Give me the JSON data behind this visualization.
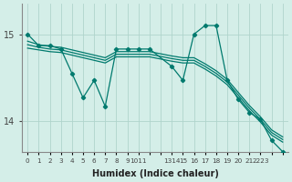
{
  "xlabel": "Humidex (Indice chaleur)",
  "bg_color": "#d4eee8",
  "line_color": "#007a6e",
  "grid_color": "#b0d4cc",
  "ylim": [
    13.65,
    15.35
  ],
  "yticks": [
    14,
    15
  ],
  "xlim": [
    -0.5,
    23.5
  ],
  "series": {
    "line_main": {
      "x": [
        0,
        1,
        2,
        3,
        4,
        5,
        6,
        7,
        8,
        9,
        10,
        11,
        13,
        14,
        15,
        16,
        17,
        18,
        19,
        20,
        21,
        22,
        23
      ],
      "y": [
        15.0,
        14.87,
        14.87,
        14.83,
        14.55,
        14.27,
        14.47,
        14.17,
        14.83,
        14.83,
        14.83,
        14.83,
        14.63,
        14.47,
        15.0,
        15.1,
        15.1,
        14.47,
        14.25,
        14.1,
        14.02,
        13.78,
        13.65
      ]
    },
    "line1": {
      "x": [
        0,
        1,
        2,
        3,
        4,
        5,
        6,
        7,
        8,
        9,
        10,
        11,
        13,
        14,
        15,
        16,
        17,
        18,
        19,
        20,
        21,
        22,
        23
      ],
      "y": [
        14.92,
        14.88,
        14.86,
        14.85,
        14.82,
        14.79,
        14.76,
        14.73,
        14.8,
        14.8,
        14.8,
        14.8,
        14.75,
        14.73,
        14.73,
        14.66,
        14.58,
        14.48,
        14.33,
        14.18,
        14.05,
        13.9,
        13.82
      ]
    },
    "line2": {
      "x": [
        0,
        1,
        2,
        3,
        4,
        5,
        6,
        7,
        8,
        9,
        10,
        11,
        13,
        14,
        15,
        16,
        17,
        18,
        19,
        20,
        21,
        22,
        23
      ],
      "y": [
        14.88,
        14.85,
        14.83,
        14.82,
        14.79,
        14.76,
        14.73,
        14.7,
        14.77,
        14.77,
        14.77,
        14.77,
        14.72,
        14.7,
        14.7,
        14.63,
        14.55,
        14.45,
        14.3,
        14.15,
        14.02,
        13.87,
        13.79
      ]
    },
    "line3": {
      "x": [
        0,
        1,
        2,
        3,
        4,
        5,
        6,
        7,
        8,
        9,
        10,
        11,
        13,
        14,
        15,
        16,
        17,
        18,
        19,
        20,
        21,
        22,
        23
      ],
      "y": [
        14.84,
        14.82,
        14.8,
        14.79,
        14.76,
        14.73,
        14.7,
        14.67,
        14.74,
        14.74,
        14.74,
        14.74,
        14.69,
        14.67,
        14.67,
        14.6,
        14.52,
        14.42,
        14.27,
        14.12,
        13.99,
        13.84,
        13.76
      ]
    }
  }
}
